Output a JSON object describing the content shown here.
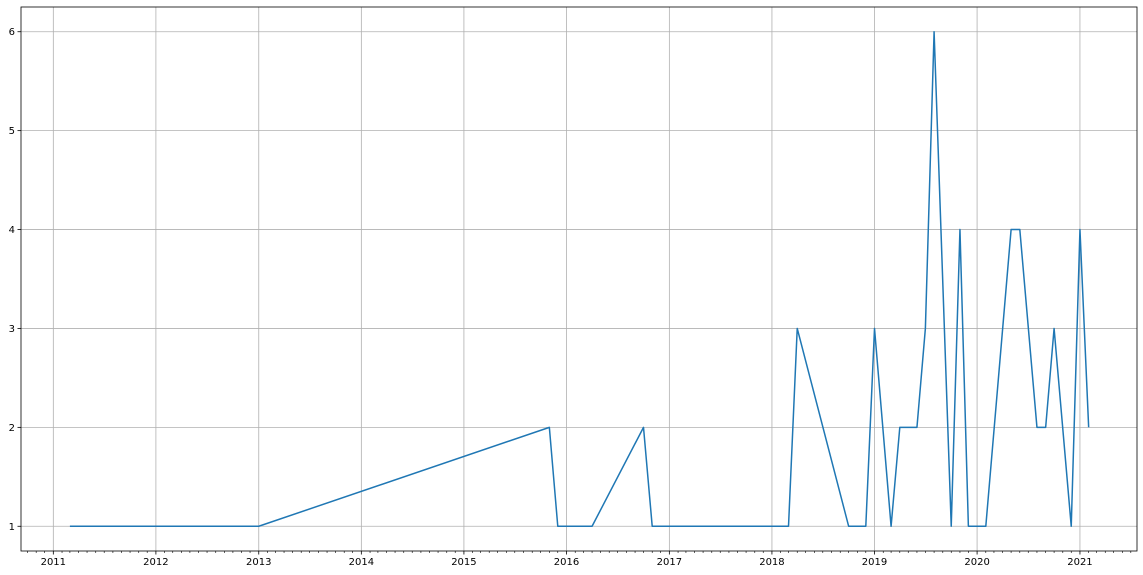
{
  "chart_data": {
    "type": "line",
    "title": "",
    "xlabel": "",
    "ylabel": "",
    "x_axis_kind": "date",
    "xlim": [
      "2010-09-08",
      "2021-07-23"
    ],
    "ylim": [
      0.75,
      6.25
    ],
    "x_ticks": [
      "2011",
      "2012",
      "2013",
      "2014",
      "2015",
      "2016",
      "2017",
      "2018",
      "2019",
      "2020",
      "2021"
    ],
    "y_ticks": [
      "1",
      "2",
      "3",
      "4",
      "5",
      "6"
    ],
    "grid": true,
    "legend": "none",
    "series": [
      {
        "color": "#1f77b4",
        "x": [
          "2011-03-01",
          "2013-01-01",
          "2015-11-01",
          "2015-12-01",
          "2016-04-01",
          "2016-10-01",
          "2016-11-01",
          "2018-03-01",
          "2018-04-01",
          "2018-10-01",
          "2018-12-01",
          "2019-01-01",
          "2019-03-01",
          "2019-04-01",
          "2019-06-01",
          "2019-07-01",
          "2019-08-01",
          "2019-10-01",
          "2019-11-01",
          "2019-12-01",
          "2020-02-01",
          "2020-05-01",
          "2020-06-01",
          "2020-08-01",
          "2020-09-01",
          "2020-10-01",
          "2020-12-01",
          "2021-01-01",
          "2021-02-01"
        ],
        "y": [
          1,
          1,
          2,
          1,
          1,
          2,
          1,
          1,
          3,
          1,
          1,
          3,
          1,
          2,
          2,
          3,
          6,
          1,
          4,
          1,
          1,
          4,
          4,
          2,
          2,
          3,
          1,
          4,
          2
        ]
      }
    ]
  }
}
